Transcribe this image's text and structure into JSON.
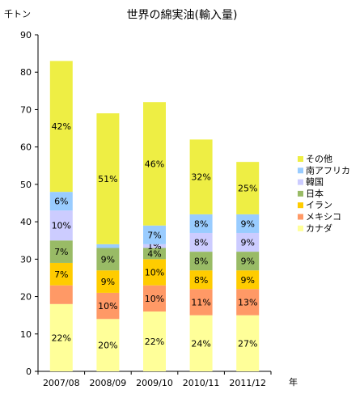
{
  "chart_data": {
    "type": "bar",
    "stacked": true,
    "title": "世界の綿実油(輸入量)",
    "ylabel": "千トン",
    "xlabel": "年",
    "ylim": [
      0,
      90
    ],
    "yticks": [
      0,
      10,
      20,
      30,
      40,
      50,
      60,
      70,
      80,
      90
    ],
    "grid": false,
    "legend_position": "right",
    "categories": [
      "2007/08",
      "2008/09",
      "2009/10",
      "2010/11",
      "2011/12"
    ],
    "series": [
      {
        "name": "カナダ",
        "color": "#ffff99",
        "values": [
          18,
          14,
          16,
          15,
          15
        ],
        "labels": [
          "22%",
          "20%",
          "22%",
          "24%",
          "27%"
        ]
      },
      {
        "name": "メキシコ",
        "color": "#ff9966",
        "values": [
          5,
          7,
          7,
          7,
          7
        ],
        "labels": [
          "",
          "10%",
          "10%",
          "11%",
          "13%"
        ]
      },
      {
        "name": "イラン",
        "color": "#ffcc00",
        "values": [
          6,
          6,
          7,
          5,
          5
        ],
        "labels": [
          "7%",
          "9%",
          "10%",
          "8%",
          "9%"
        ]
      },
      {
        "name": "日本",
        "color": "#99bb66",
        "values": [
          6,
          6,
          3,
          5,
          5
        ],
        "labels": [
          "7%",
          "9%",
          "4%",
          "8%",
          "9%"
        ]
      },
      {
        "name": "韓国",
        "color": "#ccccff",
        "values": [
          8,
          0,
          1,
          5,
          5
        ],
        "labels": [
          "10%",
          "",
          "1%",
          "8%",
          "9%"
        ]
      },
      {
        "name": "南アフリカ",
        "color": "#99ccff",
        "values": [
          5,
          1,
          5,
          5,
          5
        ],
        "labels": [
          "6%",
          "",
          "7%",
          "8%",
          "9%"
        ]
      },
      {
        "name": "その他",
        "color": "#eeee44",
        "values": [
          35,
          35,
          33,
          20,
          14
        ],
        "labels": [
          "42%",
          "51%",
          "46%",
          "32%",
          "25%"
        ]
      }
    ]
  }
}
